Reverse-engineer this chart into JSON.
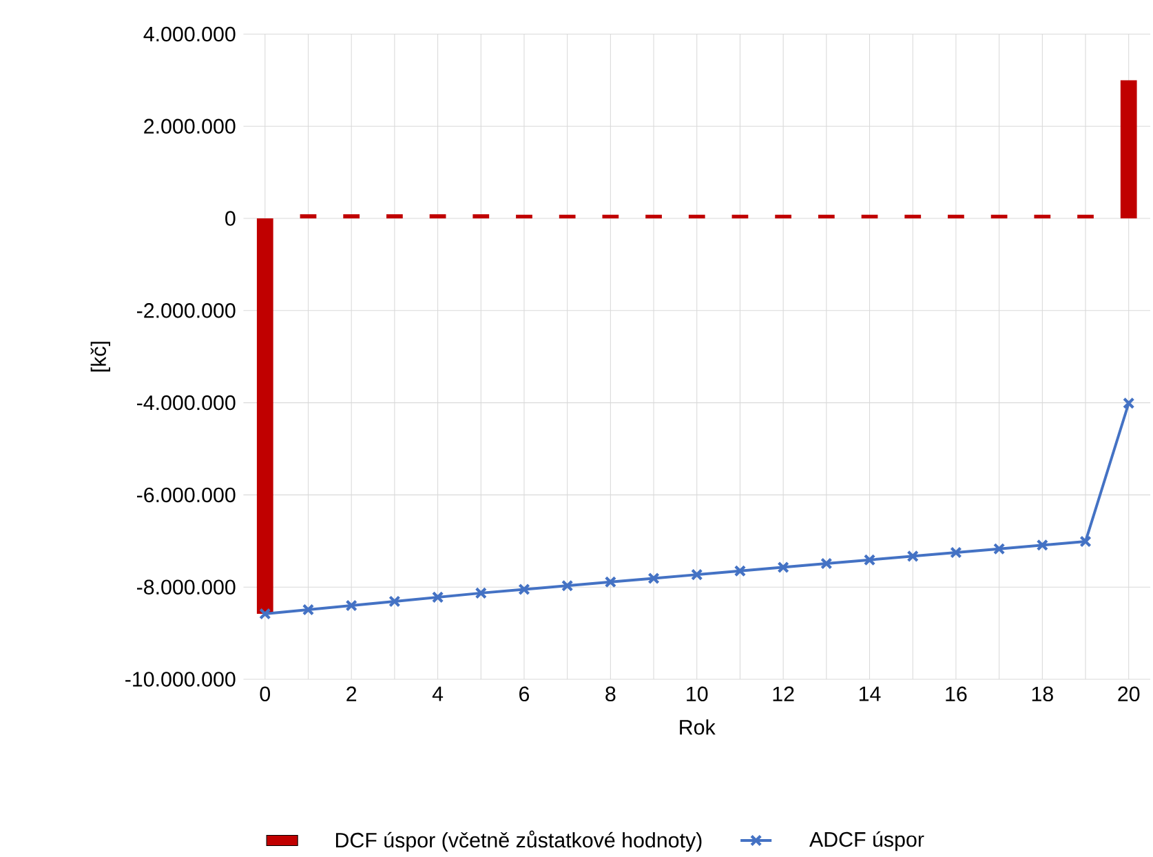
{
  "chart_data": {
    "type": "bar",
    "xlabel": "Rok",
    "ylabel": "[kč]",
    "categories": [
      "0",
      null,
      "2",
      null,
      "4",
      null,
      "6",
      null,
      "8",
      null,
      "10",
      null,
      "12",
      null,
      "14",
      null,
      "16",
      null,
      "18",
      null,
      "20"
    ],
    "series": [
      {
        "name": "DCF úspor (včetně zůstatkové hodnoty)",
        "color": "#c00000",
        "values": [
          -8580000,
          90000,
          90000,
          90000,
          90000,
          90000,
          80000,
          80000,
          80000,
          80000,
          80000,
          80000,
          80000,
          80000,
          80000,
          80000,
          80000,
          80000,
          80000,
          80000,
          3000000
        ]
      },
      {
        "name": "ADCF úspor",
        "type": "line",
        "color": "#4472c4",
        "marker": "cross",
        "values": [
          -8580000,
          -8490000,
          -8400000,
          -8310000,
          -8220000,
          -8130000,
          -8050000,
          -7970000,
          -7890000,
          -7810000,
          -7730000,
          -7650000,
          -7570000,
          -7490000,
          -7410000,
          -7330000,
          -7250000,
          -7170000,
          -7090000,
          -7010000,
          -4010000
        ]
      }
    ],
    "ylim": [
      -10000000,
      4000000
    ],
    "yticks": [
      {
        "value": -10000000,
        "label": "-10.000.000"
      },
      {
        "value": -8000000,
        "label": "-8.000.000"
      },
      {
        "value": -6000000,
        "label": "-6.000.000"
      },
      {
        "value": -4000000,
        "label": "-4.000.000"
      },
      {
        "value": -2000000,
        "label": "-2.000.000"
      },
      {
        "value": 0,
        "label": "0"
      },
      {
        "value": 2000000,
        "label": "2.000.000"
      },
      {
        "value": 4000000,
        "label": "4.000.000"
      }
    ],
    "grid": true,
    "legend": "bottom"
  }
}
